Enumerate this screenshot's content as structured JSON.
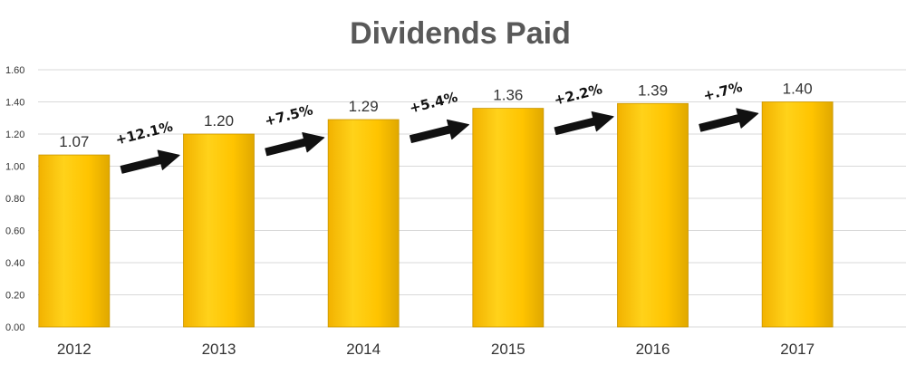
{
  "chart_data": {
    "type": "bar",
    "title": "Dividends Paid",
    "categories": [
      "2012",
      "2013",
      "2014",
      "2015",
      "2016",
      "2017"
    ],
    "values": [
      1.07,
      1.2,
      1.29,
      1.36,
      1.39,
      1.4
    ],
    "value_labels": [
      "1.07",
      "1.20",
      "1.29",
      "1.36",
      "1.39",
      "1.40"
    ],
    "ylim": [
      0,
      1.6
    ],
    "yticks": [
      0,
      0.2,
      0.4,
      0.6,
      0.8,
      1.0,
      1.2,
      1.4,
      1.6
    ],
    "ytick_labels": [
      "0.00",
      "0.20",
      "0.40",
      "0.60",
      "0.80",
      "1.00",
      "1.20",
      "1.40",
      "1.60"
    ],
    "grid": true,
    "bar_color": "#FFC000",
    "annotations": [
      {
        "text": "+12.1%",
        "from": "2012",
        "to": "2013"
      },
      {
        "text": "+7.5%",
        "from": "2013",
        "to": "2014"
      },
      {
        "text": "+5.4%",
        "from": "2014",
        "to": "2015"
      },
      {
        "text": "+2.2%",
        "from": "2015",
        "to": "2016"
      },
      {
        "text": "+.7%",
        "from": "2016",
        "to": "2017"
      }
    ]
  }
}
